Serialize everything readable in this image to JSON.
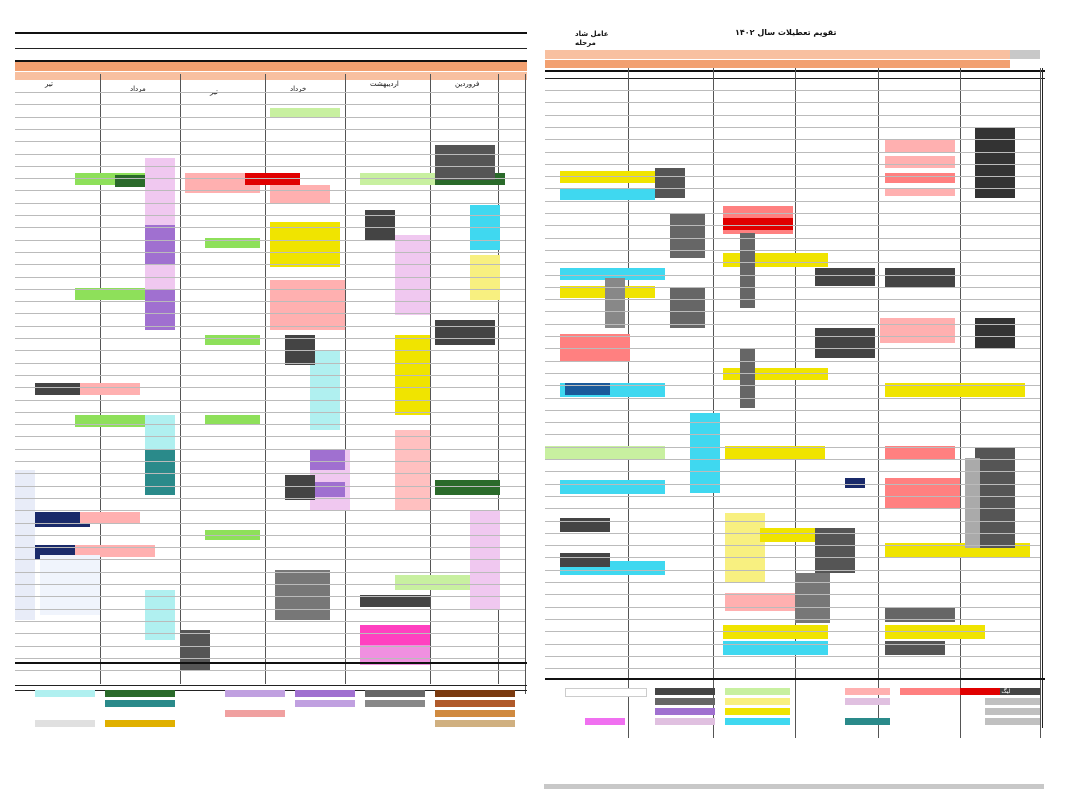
{
  "left_sheet": {
    "header": "",
    "band1": [
      "",
      ""
    ],
    "band2": [
      "",
      ""
    ],
    "columns": [
      "تیر",
      "خرداد",
      "اردیبهشت",
      "فروردین"
    ],
    "extra_columns": [
      "تیر",
      "مرداد"
    ]
  },
  "right_sheet": {
    "title_line1": "تقویم تعطیلات سال ۱۴۰۲",
    "title_line2": "",
    "corner_label_1": "عامل شاد",
    "corner_label_2": "مرحله",
    "band1": [
      "",
      ""
    ],
    "band2": [
      "",
      ""
    ]
  },
  "colors": {
    "yellow": "#f0e400",
    "cyan": "#3fd8f0",
    "pink": "#ff8080",
    "red": "#e00000",
    "magenta": "#f070f0",
    "green": "#8ee05a",
    "dark": "#444444",
    "gray": "#888888",
    "purple": "#a070d0",
    "navy": "#1a2a6a",
    "brown": "#7a3a10",
    "teal": "#2a8a8a"
  },
  "legend_left": [
    {
      "label": "",
      "color": "#8a4a20"
    },
    {
      "label": "",
      "color": "#b05a2a"
    },
    {
      "label": "",
      "color": "#d08a40"
    },
    {
      "label": "",
      "color": "#d0b080"
    }
  ],
  "legend_right": [
    {
      "label": "لیگ برتر",
      "color": "#444444"
    },
    {
      "label": "",
      "color": "#666666"
    },
    {
      "label": "",
      "color": "#888888"
    },
    {
      "label": "",
      "color": "#a070d0"
    },
    {
      "label": "",
      "color": "#8ee05a"
    },
    {
      "label": "",
      "color": "#f0e400"
    },
    {
      "label": "",
      "color": "#ff8080"
    },
    {
      "label": "",
      "color": "#e00000"
    }
  ]
}
